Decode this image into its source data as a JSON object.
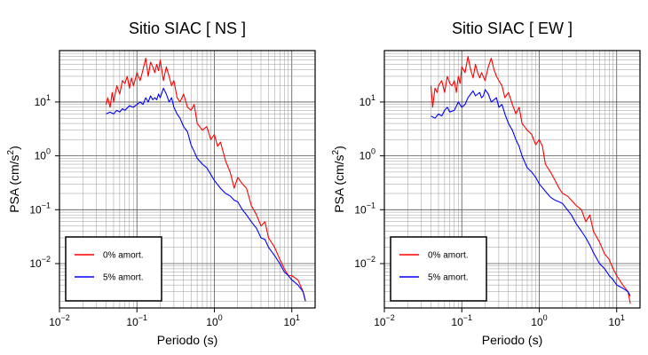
{
  "chart_data": [
    {
      "type": "line",
      "title": "Sitio SIAC [ NS ]",
      "xlabel": "Periodo (s)",
      "ylabel": "PSA (cm/s^2)",
      "xscale": "log",
      "yscale": "log",
      "xlim": [
        0.01,
        20
      ],
      "ylim": [
        0.0015,
        90
      ],
      "x_ticks": [
        {
          "value": 0.01,
          "base": "10",
          "exp": "−2"
        },
        {
          "value": 0.1,
          "base": "10",
          "exp": "−1"
        },
        {
          "value": 1,
          "base": "10",
          "exp": "0"
        },
        {
          "value": 10,
          "base": "10",
          "exp": "1"
        }
      ],
      "y_ticks": [
        {
          "value": 0.01,
          "base": "10",
          "exp": "−2"
        },
        {
          "value": 0.1,
          "base": "10",
          "exp": "−1"
        },
        {
          "value": 1,
          "base": "10",
          "exp": "0"
        },
        {
          "value": 10,
          "base": "10",
          "exp": "1"
        }
      ],
      "grid": true,
      "legend_position": "bottom-left",
      "series": [
        {
          "name": "0% amort.",
          "color": "#ff0000",
          "x": [
            0.04,
            0.042,
            0.045,
            0.048,
            0.05,
            0.055,
            0.06,
            0.065,
            0.07,
            0.075,
            0.08,
            0.085,
            0.09,
            0.095,
            0.1,
            0.11,
            0.12,
            0.13,
            0.14,
            0.15,
            0.16,
            0.17,
            0.18,
            0.19,
            0.2,
            0.22,
            0.24,
            0.26,
            0.28,
            0.3,
            0.33,
            0.36,
            0.4,
            0.45,
            0.5,
            0.55,
            0.6,
            0.7,
            0.8,
            0.9,
            1.0,
            1.1,
            1.2,
            1.4,
            1.6,
            1.8,
            2.0,
            2.3,
            2.6,
            3.0,
            3.5,
            4.0,
            4.5,
            5.0,
            6.0,
            7.0,
            8.0,
            9.0,
            10.0,
            12.0,
            14.0,
            15.0
          ],
          "y": [
            9,
            12,
            8,
            15,
            10,
            20,
            14,
            25,
            22,
            30,
            18,
            28,
            20,
            26,
            35,
            25,
            40,
            65,
            30,
            55,
            45,
            35,
            50,
            38,
            60,
            25,
            45,
            30,
            20,
            25,
            12,
            10,
            14,
            8,
            7,
            9,
            4,
            3,
            3.5,
            2,
            2.5,
            1.5,
            1.8,
            0.8,
            0.5,
            0.25,
            0.4,
            0.3,
            0.25,
            0.12,
            0.08,
            0.05,
            0.06,
            0.03,
            0.02,
            0.012,
            0.008,
            0.006,
            0.006,
            0.005,
            0.003,
            0.002
          ]
        },
        {
          "name": "5% amort.",
          "color": "#0000ff",
          "x": [
            0.04,
            0.045,
            0.05,
            0.055,
            0.06,
            0.065,
            0.07,
            0.08,
            0.09,
            0.1,
            0.11,
            0.12,
            0.13,
            0.14,
            0.15,
            0.16,
            0.17,
            0.18,
            0.19,
            0.2,
            0.22,
            0.24,
            0.26,
            0.28,
            0.3,
            0.33,
            0.36,
            0.4,
            0.45,
            0.5,
            0.55,
            0.6,
            0.7,
            0.8,
            0.9,
            1.0,
            1.2,
            1.4,
            1.6,
            1.8,
            2.0,
            2.3,
            2.6,
            3.0,
            3.5,
            4.0,
            4.5,
            5.0,
            6.0,
            7.0,
            8.0,
            9.0,
            10.0,
            12.0,
            14.0,
            15.0
          ],
          "y": [
            6,
            6.5,
            6,
            7,
            6.5,
            7.5,
            7,
            8.5,
            8,
            9,
            10,
            9,
            12,
            10,
            13,
            11,
            12,
            11,
            14,
            12,
            18,
            14,
            10,
            12,
            8,
            6,
            5,
            3.5,
            2.8,
            1.6,
            1.2,
            0.9,
            0.7,
            0.6,
            0.45,
            0.35,
            0.25,
            0.2,
            0.18,
            0.15,
            0.14,
            0.1,
            0.08,
            0.06,
            0.045,
            0.03,
            0.028,
            0.02,
            0.014,
            0.01,
            0.007,
            0.006,
            0.005,
            0.004,
            0.003,
            0.002
          ]
        }
      ]
    },
    {
      "type": "line",
      "title": "Sitio SIAC [ EW ]",
      "xlabel": "Periodo (s)",
      "ylabel": "PSA (cm/s^2)",
      "xscale": "log",
      "yscale": "log",
      "xlim": [
        0.01,
        20
      ],
      "ylim": [
        0.0015,
        90
      ],
      "x_ticks": [
        {
          "value": 0.01,
          "base": "10",
          "exp": "−2"
        },
        {
          "value": 0.1,
          "base": "10",
          "exp": "−1"
        },
        {
          "value": 1,
          "base": "10",
          "exp": "0"
        },
        {
          "value": 10,
          "base": "10",
          "exp": "1"
        }
      ],
      "y_ticks": [
        {
          "value": 0.01,
          "base": "10",
          "exp": "−2"
        },
        {
          "value": 0.1,
          "base": "10",
          "exp": "−1"
        },
        {
          "value": 1,
          "base": "10",
          "exp": "0"
        },
        {
          "value": 10,
          "base": "10",
          "exp": "1"
        }
      ],
      "grid": true,
      "legend_position": "bottom-left",
      "series": [
        {
          "name": "0% amort.",
          "color": "#ff0000",
          "x": [
            0.04,
            0.042,
            0.045,
            0.048,
            0.05,
            0.055,
            0.06,
            0.065,
            0.07,
            0.075,
            0.08,
            0.085,
            0.09,
            0.095,
            0.1,
            0.11,
            0.12,
            0.13,
            0.14,
            0.15,
            0.16,
            0.17,
            0.18,
            0.2,
            0.22,
            0.24,
            0.26,
            0.28,
            0.3,
            0.33,
            0.36,
            0.4,
            0.45,
            0.5,
            0.55,
            0.6,
            0.7,
            0.8,
            0.9,
            1.0,
            1.1,
            1.2,
            1.4,
            1.6,
            1.8,
            2.0,
            2.3,
            2.6,
            3.0,
            3.5,
            4.0,
            4.5,
            5.0,
            6.0,
            7.0,
            8.0,
            9.0,
            10.0,
            12.0,
            14.0,
            15.0
          ],
          "y": [
            20,
            8,
            18,
            15,
            20,
            25,
            15,
            30,
            22,
            20,
            25,
            15,
            30,
            22,
            45,
            35,
            70,
            40,
            28,
            50,
            35,
            28,
            35,
            25,
            45,
            65,
            40,
            30,
            25,
            20,
            12,
            15,
            9,
            6,
            8,
            4,
            3,
            2.5,
            1.6,
            2.0,
            1.5,
            0.7,
            0.5,
            0.35,
            0.25,
            0.2,
            0.18,
            0.15,
            0.12,
            0.1,
            0.06,
            0.08,
            0.04,
            0.025,
            0.015,
            0.012,
            0.008,
            0.006,
            0.004,
            0.003,
            0.0018
          ]
        },
        {
          "name": "5% amort.",
          "color": "#0000ff",
          "x": [
            0.04,
            0.045,
            0.05,
            0.055,
            0.06,
            0.065,
            0.07,
            0.08,
            0.09,
            0.1,
            0.11,
            0.12,
            0.13,
            0.14,
            0.15,
            0.16,
            0.17,
            0.18,
            0.19,
            0.2,
            0.22,
            0.24,
            0.26,
            0.28,
            0.3,
            0.33,
            0.36,
            0.4,
            0.45,
            0.5,
            0.55,
            0.6,
            0.7,
            0.8,
            0.9,
            1.0,
            1.2,
            1.4,
            1.6,
            1.8,
            2.0,
            2.3,
            2.6,
            3.0,
            3.5,
            4.0,
            4.5,
            5.0,
            6.0,
            7.0,
            8.0,
            9.0,
            10.0,
            12.0,
            14.0,
            15.0
          ],
          "y": [
            5.5,
            5,
            6,
            5.5,
            7,
            8,
            6.5,
            7,
            10,
            8,
            9,
            12,
            14,
            16,
            13,
            14,
            15,
            12,
            13,
            17,
            14,
            10,
            11,
            12,
            8,
            9,
            6,
            4,
            3,
            2,
            1.5,
            1.0,
            0.6,
            0.5,
            0.4,
            0.3,
            0.22,
            0.17,
            0.15,
            0.14,
            0.13,
            0.1,
            0.08,
            0.055,
            0.04,
            0.03,
            0.022,
            0.016,
            0.01,
            0.008,
            0.006,
            0.005,
            0.004,
            0.0035,
            0.003,
            0.0025
          ]
        }
      ]
    }
  ]
}
